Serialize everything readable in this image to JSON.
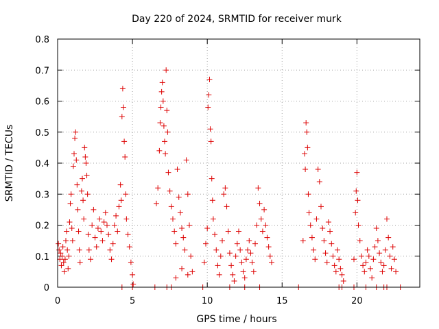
{
  "chart_data": {
    "type": "scatter",
    "title": "Day 220 of 2024, SRMTID for receiver murk",
    "xlabel": "GPS time / hours",
    "ylabel": "SRMTID / TECUs",
    "xlim": [
      0,
      24.2
    ],
    "ylim": [
      0,
      0.8
    ],
    "x_ticks": [
      0,
      5,
      10,
      15,
      20
    ],
    "x_tick_labels": [
      "0",
      "5",
      "10",
      "15",
      "20"
    ],
    "y_ticks": [
      0,
      0.1,
      0.2,
      0.3,
      0.4,
      0.5,
      0.6,
      0.7,
      0.8
    ],
    "y_tick_labels": [
      "0",
      "0.1",
      "0.2",
      "0.3",
      "0.4",
      "0.5",
      "0.6",
      "0.7",
      "0.8"
    ],
    "grid": true,
    "marker": "+",
    "color": "#dd0000",
    "series": [
      {
        "name": "SRMTID",
        "points": [
          [
            0.05,
            0.14
          ],
          [
            0.1,
            0.12
          ],
          [
            0.15,
            0.09
          ],
          [
            0.2,
            0.11
          ],
          [
            0.25,
            0.07
          ],
          [
            0.3,
            0.1
          ],
          [
            0.35,
            0.13
          ],
          [
            0.4,
            0.08
          ],
          [
            0.45,
            0.05
          ],
          [
            0.5,
            0.09
          ],
          [
            0.55,
            0.15
          ],
          [
            0.6,
            0.18
          ],
          [
            0.65,
            0.12
          ],
          [
            0.7,
            0.06
          ],
          [
            0.75,
            0.1
          ],
          [
            0.8,
            0.21
          ],
          [
            0.85,
            0.27
          ],
          [
            0.9,
            0.3
          ],
          [
            0.95,
            0.19
          ],
          [
            1.0,
            0.15
          ],
          [
            1.05,
            0.39
          ],
          [
            1.1,
            0.43
          ],
          [
            1.15,
            0.48
          ],
          [
            1.2,
            0.5
          ],
          [
            1.25,
            0.41
          ],
          [
            1.3,
            0.33
          ],
          [
            1.35,
            0.25
          ],
          [
            1.4,
            0.18
          ],
          [
            1.45,
            0.12
          ],
          [
            1.5,
            0.08
          ],
          [
            1.6,
            0.31
          ],
          [
            1.65,
            0.35
          ],
          [
            1.7,
            0.28
          ],
          [
            1.75,
            0.22
          ],
          [
            1.8,
            0.45
          ],
          [
            1.85,
            0.42
          ],
          [
            1.9,
            0.4
          ],
          [
            1.95,
            0.36
          ],
          [
            2.0,
            0.3
          ],
          [
            2.05,
            0.17
          ],
          [
            2.1,
            0.12
          ],
          [
            2.2,
            0.09
          ],
          [
            2.3,
            0.2
          ],
          [
            2.4,
            0.25
          ],
          [
            2.5,
            0.16
          ],
          [
            2.6,
            0.13
          ],
          [
            2.7,
            0.19
          ],
          [
            2.8,
            0.22
          ],
          [
            2.9,
            0.18
          ],
          [
            3.0,
            0.15
          ],
          [
            3.1,
            0.21
          ],
          [
            3.2,
            0.24
          ],
          [
            3.3,
            0.2
          ],
          [
            3.4,
            0.17
          ],
          [
            3.5,
            0.12
          ],
          [
            3.6,
            0.09
          ],
          [
            3.7,
            0.14
          ],
          [
            3.8,
            0.2
          ],
          [
            3.9,
            0.23
          ],
          [
            4.0,
            0.18
          ],
          [
            4.1,
            0.26
          ],
          [
            4.2,
            0.33
          ],
          [
            4.25,
            0.28
          ],
          [
            4.3,
            0.55
          ],
          [
            4.35,
            0.64
          ],
          [
            4.4,
            0.58
          ],
          [
            4.45,
            0.47
          ],
          [
            4.5,
            0.42
          ],
          [
            4.55,
            0.3
          ],
          [
            4.6,
            0.22
          ],
          [
            4.7,
            0.17
          ],
          [
            4.8,
            0.13
          ],
          [
            4.9,
            0.08
          ],
          [
            5.0,
            0.04
          ],
          [
            5.05,
            0.01
          ],
          [
            4.3,
            0.0
          ],
          [
            5.0,
            0.0
          ],
          [
            6.6,
            0.27
          ],
          [
            6.7,
            0.32
          ],
          [
            6.8,
            0.44
          ],
          [
            6.85,
            0.53
          ],
          [
            6.9,
            0.58
          ],
          [
            6.95,
            0.63
          ],
          [
            7.0,
            0.66
          ],
          [
            7.05,
            0.6
          ],
          [
            7.1,
            0.52
          ],
          [
            7.15,
            0.47
          ],
          [
            7.2,
            0.43
          ],
          [
            7.25,
            0.7
          ],
          [
            7.3,
            0.57
          ],
          [
            7.35,
            0.5
          ],
          [
            7.4,
            0.37
          ],
          [
            7.5,
            0.31
          ],
          [
            7.6,
            0.26
          ],
          [
            7.7,
            0.22
          ],
          [
            7.8,
            0.18
          ],
          [
            7.9,
            0.14
          ],
          [
            8.0,
            0.38
          ],
          [
            8.1,
            0.29
          ],
          [
            8.2,
            0.24
          ],
          [
            8.3,
            0.19
          ],
          [
            8.4,
            0.16
          ],
          [
            8.5,
            0.12
          ],
          [
            8.6,
            0.41
          ],
          [
            8.7,
            0.3
          ],
          [
            8.8,
            0.2
          ],
          [
            8.9,
            0.1
          ],
          [
            9.0,
            0.05
          ],
          [
            6.5,
            0.0
          ],
          [
            7.3,
            0.0
          ],
          [
            7.6,
            0.0
          ],
          [
            7.9,
            0.03
          ],
          [
            8.3,
            0.06
          ],
          [
            8.7,
            0.04
          ],
          [
            9.8,
            0.08
          ],
          [
            9.9,
            0.14
          ],
          [
            10.0,
            0.19
          ],
          [
            10.05,
            0.58
          ],
          [
            10.1,
            0.62
          ],
          [
            10.15,
            0.67
          ],
          [
            10.2,
            0.51
          ],
          [
            10.25,
            0.47
          ],
          [
            10.3,
            0.35
          ],
          [
            10.35,
            0.28
          ],
          [
            10.4,
            0.22
          ],
          [
            10.5,
            0.17
          ],
          [
            10.6,
            0.12
          ],
          [
            10.7,
            0.07
          ],
          [
            10.8,
            0.04
          ],
          [
            10.9,
            0.1
          ],
          [
            11.0,
            0.15
          ],
          [
            11.1,
            0.3
          ],
          [
            11.2,
            0.32
          ],
          [
            11.3,
            0.26
          ],
          [
            11.4,
            0.18
          ],
          [
            11.5,
            0.11
          ],
          [
            11.6,
            0.07
          ],
          [
            11.7,
            0.04
          ],
          [
            11.8,
            0.02
          ],
          [
            11.9,
            0.1
          ],
          [
            12.0,
            0.14
          ],
          [
            12.1,
            0.18
          ],
          [
            12.2,
            0.12
          ],
          [
            12.3,
            0.08
          ],
          [
            12.4,
            0.05
          ],
          [
            12.5,
            0.03
          ],
          [
            12.6,
            0.09
          ],
          [
            12.7,
            0.12
          ],
          [
            12.8,
            0.15
          ],
          [
            12.9,
            0.11
          ],
          [
            13.0,
            0.08
          ],
          [
            13.1,
            0.05
          ],
          [
            13.2,
            0.14
          ],
          [
            13.3,
            0.2
          ],
          [
            13.4,
            0.32
          ],
          [
            13.5,
            0.27
          ],
          [
            13.6,
            0.22
          ],
          [
            13.7,
            0.18
          ],
          [
            13.8,
            0.25
          ],
          [
            13.9,
            0.2
          ],
          [
            14.0,
            0.16
          ],
          [
            14.1,
            0.13
          ],
          [
            14.2,
            0.1
          ],
          [
            14.3,
            0.08
          ],
          [
            9.7,
            0.0
          ],
          [
            11.5,
            0.0
          ],
          [
            12.5,
            0.0
          ],
          [
            13.5,
            0.0
          ],
          [
            16.4,
            0.15
          ],
          [
            16.5,
            0.43
          ],
          [
            16.55,
            0.38
          ],
          [
            16.6,
            0.53
          ],
          [
            16.65,
            0.5
          ],
          [
            16.7,
            0.45
          ],
          [
            16.75,
            0.3
          ],
          [
            16.8,
            0.24
          ],
          [
            16.9,
            0.2
          ],
          [
            17.0,
            0.16
          ],
          [
            17.1,
            0.12
          ],
          [
            17.2,
            0.09
          ],
          [
            17.3,
            0.22
          ],
          [
            17.4,
            0.38
          ],
          [
            17.5,
            0.34
          ],
          [
            17.6,
            0.26
          ],
          [
            17.7,
            0.19
          ],
          [
            17.8,
            0.15
          ],
          [
            17.9,
            0.11
          ],
          [
            18.0,
            0.08
          ],
          [
            18.1,
            0.21
          ],
          [
            18.2,
            0.18
          ],
          [
            18.3,
            0.14
          ],
          [
            18.4,
            0.1
          ],
          [
            18.5,
            0.07
          ],
          [
            18.6,
            0.05
          ],
          [
            18.7,
            0.12
          ],
          [
            18.8,
            0.09
          ],
          [
            18.9,
            0.06
          ],
          [
            19.0,
            0.04
          ],
          [
            19.1,
            0.02
          ],
          [
            16.1,
            0.0
          ],
          [
            18.8,
            0.0
          ],
          [
            19.0,
            0.0
          ],
          [
            19.8,
            0.09
          ],
          [
            19.9,
            0.24
          ],
          [
            19.95,
            0.31
          ],
          [
            20.0,
            0.37
          ],
          [
            20.05,
            0.28
          ],
          [
            20.1,
            0.2
          ],
          [
            20.2,
            0.15
          ],
          [
            20.3,
            0.1
          ],
          [
            20.4,
            0.07
          ],
          [
            20.5,
            0.05
          ],
          [
            20.6,
            0.08
          ],
          [
            20.7,
            0.12
          ],
          [
            20.8,
            0.1
          ],
          [
            20.9,
            0.06
          ],
          [
            21.0,
            0.03
          ],
          [
            21.1,
            0.09
          ],
          [
            21.2,
            0.13
          ],
          [
            21.3,
            0.19
          ],
          [
            21.4,
            0.15
          ],
          [
            21.5,
            0.11
          ],
          [
            21.6,
            0.08
          ],
          [
            21.7,
            0.05
          ],
          [
            21.8,
            0.07
          ],
          [
            21.9,
            0.12
          ],
          [
            22.0,
            0.22
          ],
          [
            22.1,
            0.16
          ],
          [
            22.2,
            0.1
          ],
          [
            22.3,
            0.06
          ],
          [
            22.4,
            0.13
          ],
          [
            22.5,
            0.09
          ],
          [
            22.6,
            0.05
          ],
          [
            19.8,
            0.0
          ],
          [
            20.6,
            0.0
          ],
          [
            21.3,
            0.0
          ],
          [
            21.8,
            0.0
          ],
          [
            22.0,
            0.0
          ],
          [
            22.9,
            0.0
          ]
        ]
      }
    ]
  }
}
